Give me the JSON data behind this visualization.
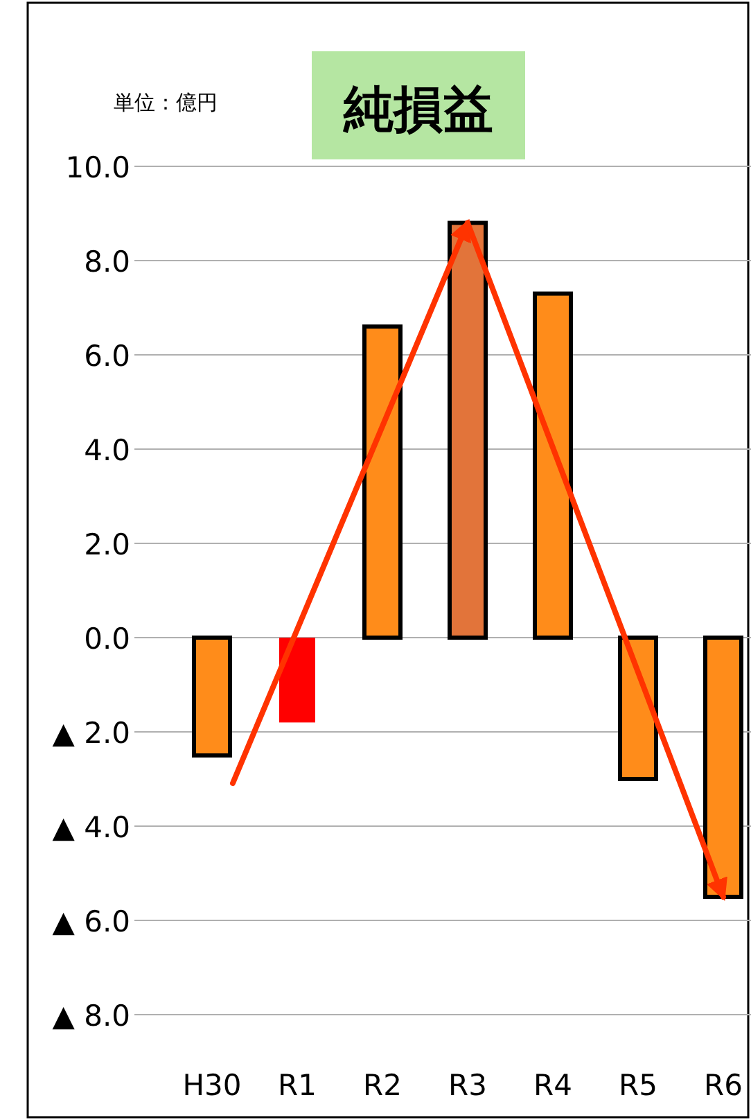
{
  "chart_data": {
    "type": "bar",
    "title": "純損益",
    "ylabel": "単位：億円",
    "categories": [
      "H30",
      "R1",
      "R2",
      "R3",
      "R4",
      "R5",
      "R6"
    ],
    "values": [
      -2.5,
      -1.8,
      6.6,
      8.8,
      7.3,
      -3.0,
      -5.5
    ],
    "colors": [
      "#ff8c1a",
      "#ff0000",
      "#ff8c1a",
      "#e2743a",
      "#ff8c1a",
      "#ff8c1a",
      "#ff8c1a"
    ],
    "ylim": [
      -8,
      10
    ],
    "yticks": [
      {
        "value": 10,
        "label": "10.0"
      },
      {
        "value": 8,
        "label": "8.0"
      },
      {
        "value": 6,
        "label": "6.0"
      },
      {
        "value": 4,
        "label": "4.0"
      },
      {
        "value": 2,
        "label": "2.0"
      },
      {
        "value": 0,
        "label": "0.0"
      },
      {
        "value": -2,
        "label": "▲ 2.0"
      },
      {
        "value": -4,
        "label": "▲ 4.0"
      },
      {
        "value": -6,
        "label": "▲ 6.0"
      },
      {
        "value": -8,
        "label": "▲ 8.0"
      }
    ],
    "grid": "y"
  }
}
